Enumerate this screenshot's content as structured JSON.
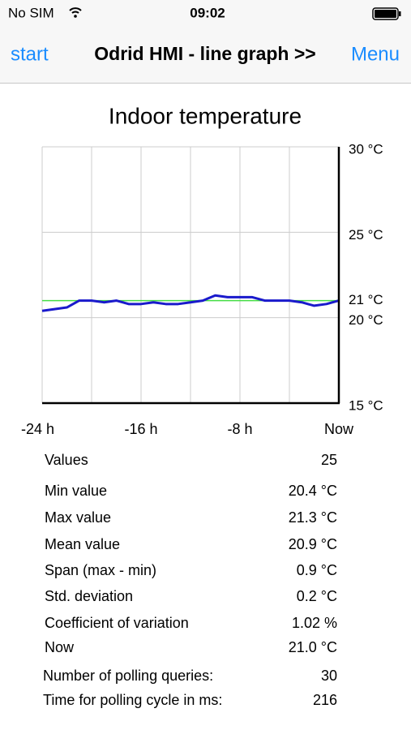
{
  "status_bar": {
    "carrier": "No SIM",
    "time": "09:02"
  },
  "nav_bar": {
    "back": "start",
    "title": "Odrid HMI - line graph >>",
    "menu": "Menu"
  },
  "chart_data": {
    "type": "line",
    "title": "Indoor temperature",
    "x": [
      -24,
      -23,
      -22,
      -21,
      -20,
      -19,
      -18,
      -17,
      -16,
      -15,
      -14,
      -13,
      -12,
      -11,
      -10,
      -9,
      -8,
      -7,
      -6,
      -5,
      -4,
      -3,
      -2,
      -1,
      0
    ],
    "series": [
      {
        "color": "#1a1acc",
        "values": [
          20.4,
          20.5,
          20.6,
          21.0,
          21.0,
          20.9,
          21.0,
          20.8,
          20.8,
          20.9,
          20.8,
          20.8,
          20.9,
          21.0,
          21.3,
          21.2,
          21.2,
          21.2,
          21.0,
          21.0,
          21.0,
          20.9,
          20.7,
          20.8,
          21.0
        ]
      }
    ],
    "xlim": [
      -24,
      0
    ],
    "xticks": [
      {
        "value": -24,
        "label": "-24 h"
      },
      {
        "value": -16,
        "label": "-16 h"
      },
      {
        "value": -8,
        "label": "-8 h"
      },
      {
        "value": 0,
        "label": "Now"
      }
    ],
    "x_minor_grid": [
      -20,
      -12,
      -4
    ],
    "ylim": [
      15,
      30
    ],
    "yticks": [
      {
        "value": 15,
        "label": "15 °C"
      },
      {
        "value": 20,
        "label": "20 °C"
      },
      {
        "value": 25,
        "label": "25 °C"
      },
      {
        "value": 30,
        "label": "30 °C"
      }
    ],
    "reference_line": {
      "value": 21,
      "label": "21 °C",
      "color": "#44dd44"
    },
    "grid": true
  },
  "stats": [
    {
      "label": "Values",
      "value": "25"
    },
    {
      "label": "Min value",
      "value": "20.4 °C"
    },
    {
      "label": "Max value",
      "value": "21.3 °C"
    },
    {
      "label": "Mean value",
      "value": "20.9 °C"
    },
    {
      "label": "Span (max - min)",
      "value": "0.9 °C"
    },
    {
      "label": "Std. deviation",
      "value": "0.2 °C"
    },
    {
      "label": "Coefficient of variation",
      "value": "1.02 %"
    },
    {
      "label": "Now",
      "value": "21.0 °C"
    },
    {
      "label": "Number of polling queries:",
      "value": "30"
    },
    {
      "label": "Time for polling cycle in ms:",
      "value": "216"
    }
  ]
}
